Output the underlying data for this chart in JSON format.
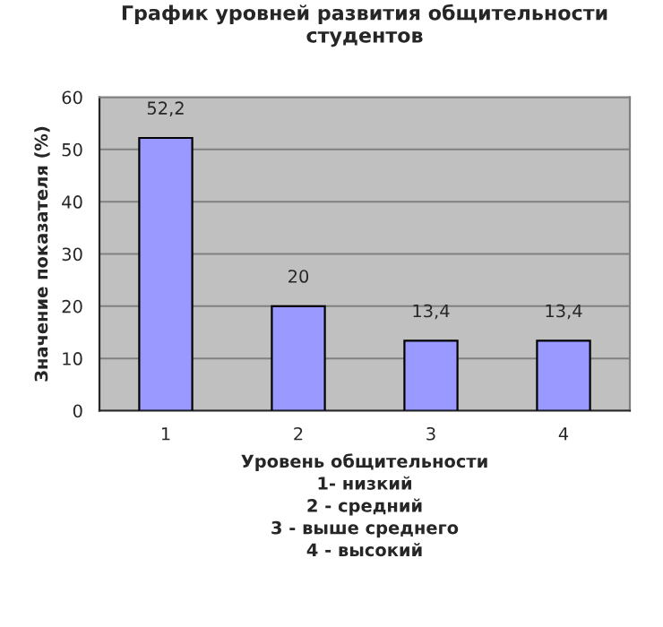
{
  "chart_data": {
    "type": "bar",
    "title": "График уровней развития общительности\nстудентов",
    "xlabel": "Уровень общительности\n1- низкий\n2 - средний\n3 - выше среднего\n4 - высокий",
    "ylabel": "Значение показателя (%)",
    "categories": [
      "1",
      "2",
      "3",
      "4"
    ],
    "values": [
      52.2,
      20,
      13.4,
      13.4
    ],
    "value_labels": [
      "52,2",
      "20",
      "13,4",
      "13,4"
    ],
    "color": "#9999ff",
    "ylim": [
      0,
      60
    ],
    "yticks": [
      0,
      10,
      20,
      30,
      40,
      50,
      60
    ],
    "grid": "y"
  }
}
